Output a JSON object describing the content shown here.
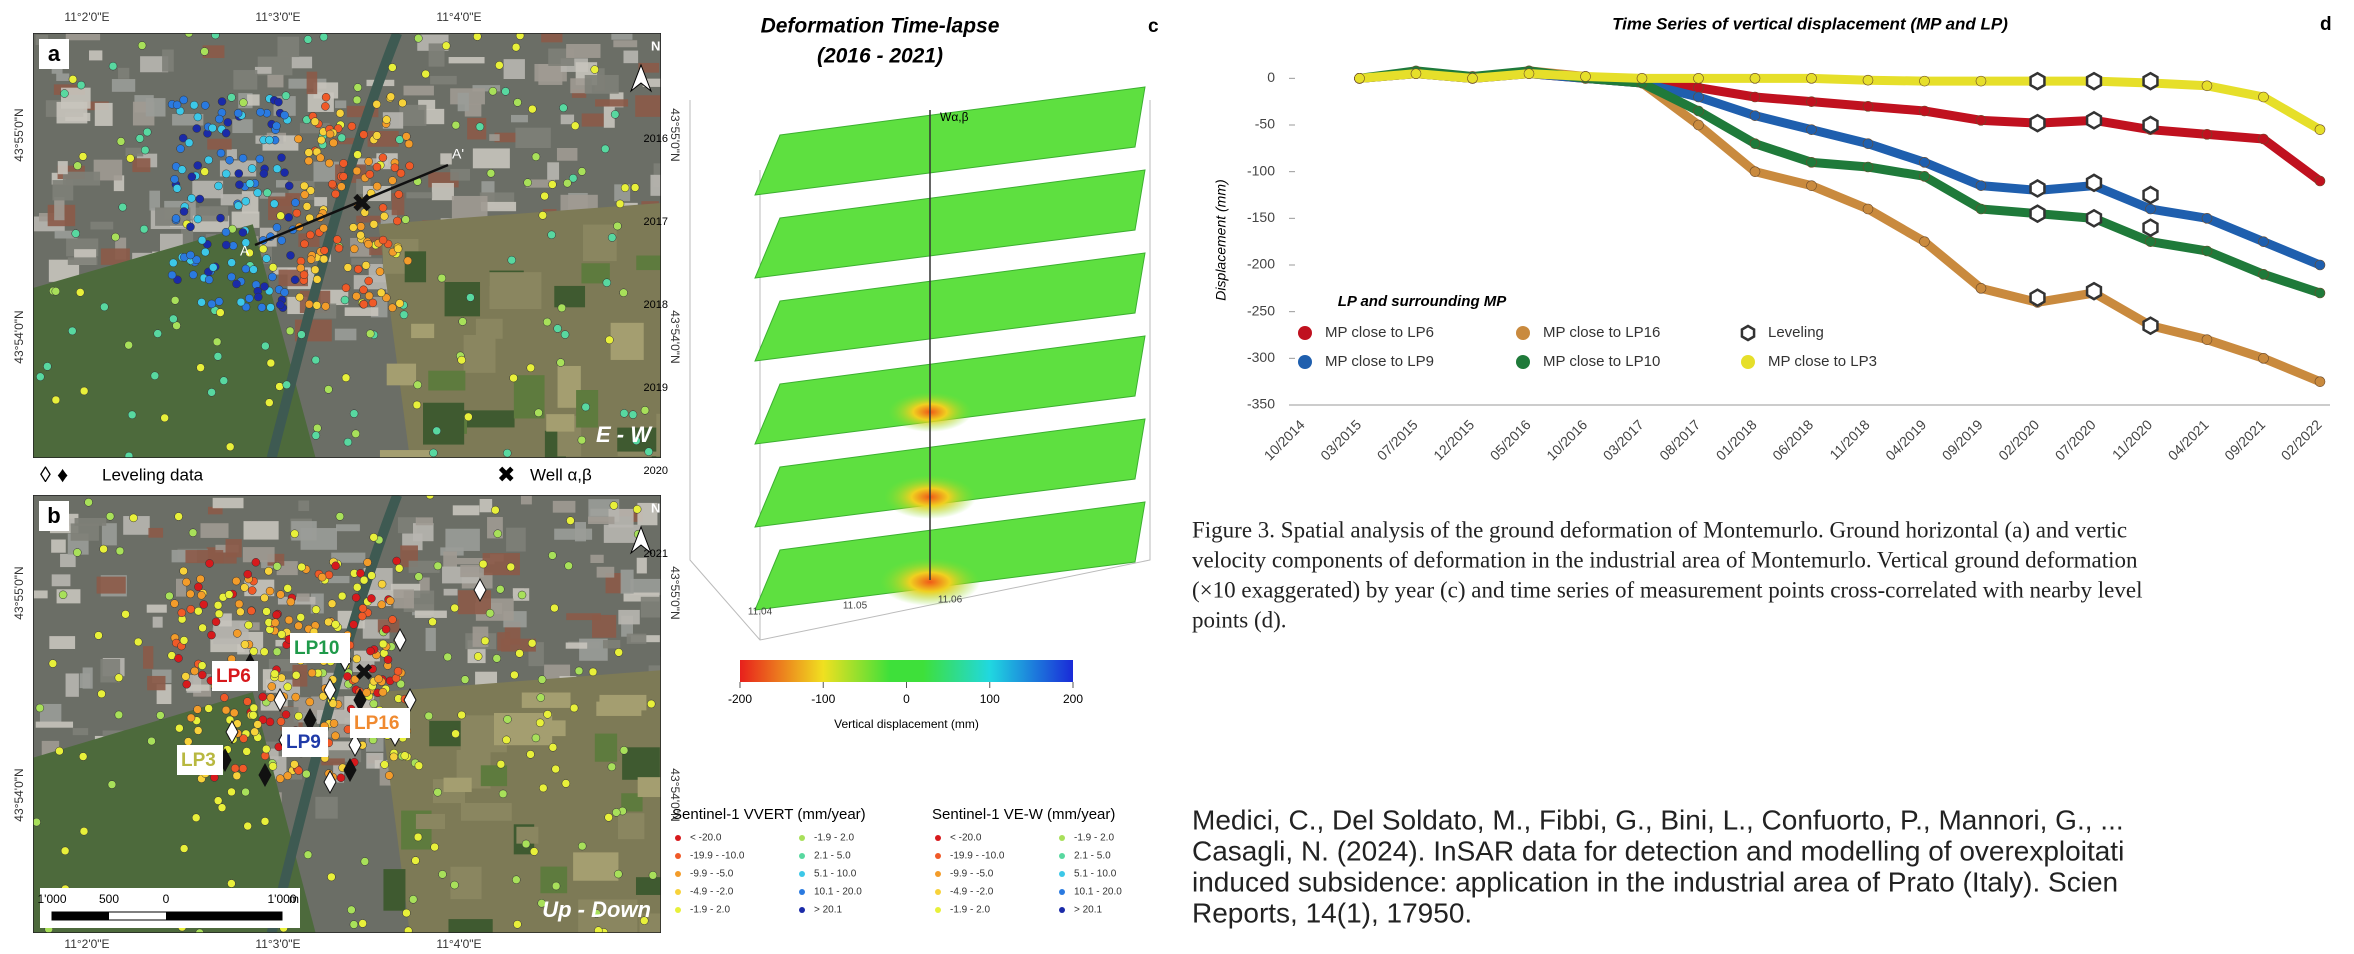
{
  "maps": {
    "coords": {
      "lon": [
        "11°2'0\"E",
        "11°3'0\"E",
        "11°4'0\"E"
      ],
      "lat": [
        "43°55'0\"N",
        "43°54'0\"N"
      ]
    },
    "north": "N",
    "a": {
      "label": "a",
      "tag": "E - W",
      "section": [
        "A",
        "A'"
      ]
    },
    "b": {
      "label": "b",
      "tag": "Up - Down",
      "lp": [
        "LP6",
        "LP10",
        "LP9",
        "LP16",
        "LP3"
      ],
      "scale": [
        "1'000",
        "500",
        "0",
        "1'000",
        "m"
      ]
    },
    "legend": {
      "leveling": "Leveling data",
      "well": "Well α,β"
    },
    "sentinel": [
      {
        "title": "Sentinel-1 VVERT (mm/year)",
        "classes": [
          "< -20.0",
          "-19.9 - -10.0",
          "-9.9 - -5.0",
          "-4.9 - -2.0",
          "-1.9 - 2.0",
          "-1.9 - 2.0",
          "2.1 - 5.0",
          "5.1 - 10.0",
          "10.1 - 20.0",
          "> 20.1"
        ]
      },
      {
        "title": "Sentinel-1 VE-W (mm/year)",
        "classes": [
          "< -20.0",
          "-19.9 - -10.0",
          "-9.9 - -5.0",
          "-4.9 - -2.0",
          "-1.9 - 2.0",
          "-1.9 - 2.0",
          "2.1 - 5.0",
          "5.1 - 10.0",
          "10.1 - 20.0",
          "> 20.1"
        ]
      }
    ]
  },
  "timelapse": {
    "label": "c",
    "title": "Deformation Time-lapse",
    "subtitle": "(2016 - 2021)",
    "years": [
      "2016",
      "2017",
      "2018",
      "2019",
      "2020",
      "2021"
    ],
    "well": "Wα,β",
    "axis_ticks": [
      "11.04",
      "11.05",
      "11.06"
    ],
    "colorbar": {
      "lim": [
        -200,
        200
      ],
      "ticks": [
        -200,
        -100,
        0,
        100,
        200
      ],
      "label": "Vertical displacement (mm)"
    }
  },
  "chart_data": {
    "type": "line",
    "label": "d",
    "title": "Time Series of vertical displacement (MP and LP)",
    "y_label": "Displacement (mm)",
    "legend_title": "LP and surrounding MP",
    "categories": [
      "10/2014",
      "03/2015",
      "07/2015",
      "12/2015",
      "05/2016",
      "10/2016",
      "03/2017",
      "08/2017",
      "01/2018",
      "06/2018",
      "11/2018",
      "04/2019",
      "09/2019",
      "02/2020",
      "07/2020",
      "11/2020",
      "04/2021",
      "09/2021",
      "02/2022"
    ],
    "ylim": [
      -350,
      10
    ],
    "yticks": [
      0,
      -50,
      -100,
      -150,
      -200,
      -250,
      -300,
      -350
    ],
    "series": [
      {
        "name": "MP close to LP6",
        "color": "#c0111f",
        "values": [
          null,
          0,
          5,
          0,
          5,
          0,
          -5,
          -10,
          -20,
          -25,
          -30,
          -35,
          -45,
          -48,
          -45,
          -55,
          -60,
          -65,
          -110
        ]
      },
      {
        "name": "MP close to LP16",
        "color": "#c98a3e",
        "values": [
          null,
          0,
          5,
          0,
          8,
          2,
          -5,
          -50,
          -100,
          -115,
          -140,
          -175,
          -225,
          -240,
          -230,
          -265,
          -280,
          -300,
          -325
        ]
      },
      {
        "name": "MP close to LP9",
        "color": "#1f5fae",
        "values": [
          null,
          0,
          5,
          0,
          5,
          0,
          -5,
          -20,
          -40,
          -55,
          -70,
          -90,
          -115,
          -120,
          -115,
          -140,
          -150,
          -175,
          -200
        ]
      },
      {
        "name": "MP close to LP10",
        "color": "#1f7a3a",
        "values": [
          null,
          0,
          8,
          2,
          8,
          0,
          -5,
          -35,
          -70,
          -90,
          -95,
          -105,
          -140,
          -145,
          -150,
          -175,
          -185,
          -210,
          -230
        ]
      },
      {
        "name": "MP close to LP3",
        "color": "#e6df2a",
        "values": [
          null,
          0,
          5,
          0,
          5,
          2,
          0,
          0,
          0,
          0,
          -2,
          -3,
          -3,
          -3,
          -3,
          -5,
          -8,
          -20,
          -55
        ]
      }
    ],
    "leveling": {
      "name": "Leveling",
      "points": [
        {
          "x": "02/2020",
          "y": -3
        },
        {
          "x": "07/2020",
          "y": -3
        },
        {
          "x": "11/2020",
          "y": -3
        },
        {
          "x": "02/2020",
          "y": -48
        },
        {
          "x": "07/2020",
          "y": -45
        },
        {
          "x": "11/2020",
          "y": -50
        },
        {
          "x": "02/2020",
          "y": -118
        },
        {
          "x": "07/2020",
          "y": -112
        },
        {
          "x": "11/2020",
          "y": -125
        },
        {
          "x": "02/2020",
          "y": -145
        },
        {
          "x": "07/2020",
          "y": -150
        },
        {
          "x": "11/2020",
          "y": -160
        },
        {
          "x": "02/2020",
          "y": -235
        },
        {
          "x": "07/2020",
          "y": -228
        },
        {
          "x": "11/2020",
          "y": -265
        }
      ]
    }
  },
  "caption": {
    "lines": [
      "Figure 3.  Spatial analysis of the ground deformation of Montemurlo. Ground horizontal (a) and vertic",
      "velocity components of deformation in the industrial area of Montemurlo. Vertical ground deformation",
      "(×10 exaggerated) by year (c) and time series of measurement points cross-correlated with nearby level",
      "points (d)."
    ]
  },
  "citation": {
    "lines": [
      "Medici, C., Del Soldato, M., Fibbi, G., Bini, L., Confuorto, P., Mannori, G., ...",
      "Casagli, N. (2024). InSAR data for detection and modelling of overexploitati",
      "induced subsidence: application in the industrial area of Prato (Italy). Scien",
      "Reports, 14(1), 17950."
    ]
  }
}
